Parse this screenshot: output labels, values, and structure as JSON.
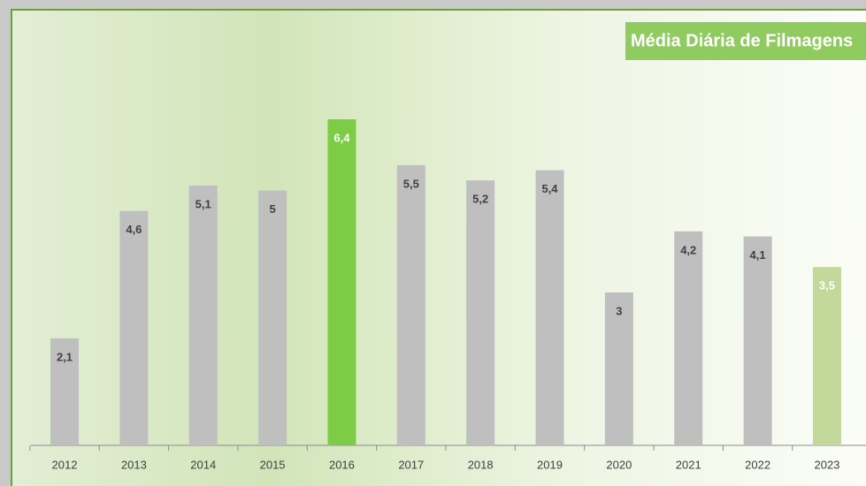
{
  "chart_data": {
    "type": "bar",
    "title": "Média Diária de Filmagens",
    "categories": [
      "2012",
      "2013",
      "2014",
      "2015",
      "2016",
      "2017",
      "2018",
      "2019",
      "2020",
      "2021",
      "2022",
      "2023"
    ],
    "values": [
      2.1,
      4.6,
      5.1,
      5,
      6.4,
      5.5,
      5.2,
      5.4,
      3,
      4.2,
      4.1,
      3.5
    ],
    "value_labels": [
      "2,1",
      "4,6",
      "5,1",
      "5",
      "6,4",
      "5,5",
      "5,2",
      "5,4",
      "3",
      "4,2",
      "4,1",
      "3,5"
    ],
    "colors": [
      "#bfbfbf",
      "#bfbfbf",
      "#bfbfbf",
      "#bfbfbf",
      "#7dcc45",
      "#bfbfbf",
      "#bfbfbf",
      "#bfbfbf",
      "#bfbfbf",
      "#bfbfbf",
      "#bfbfbf",
      "#c3d99b"
    ]
  }
}
